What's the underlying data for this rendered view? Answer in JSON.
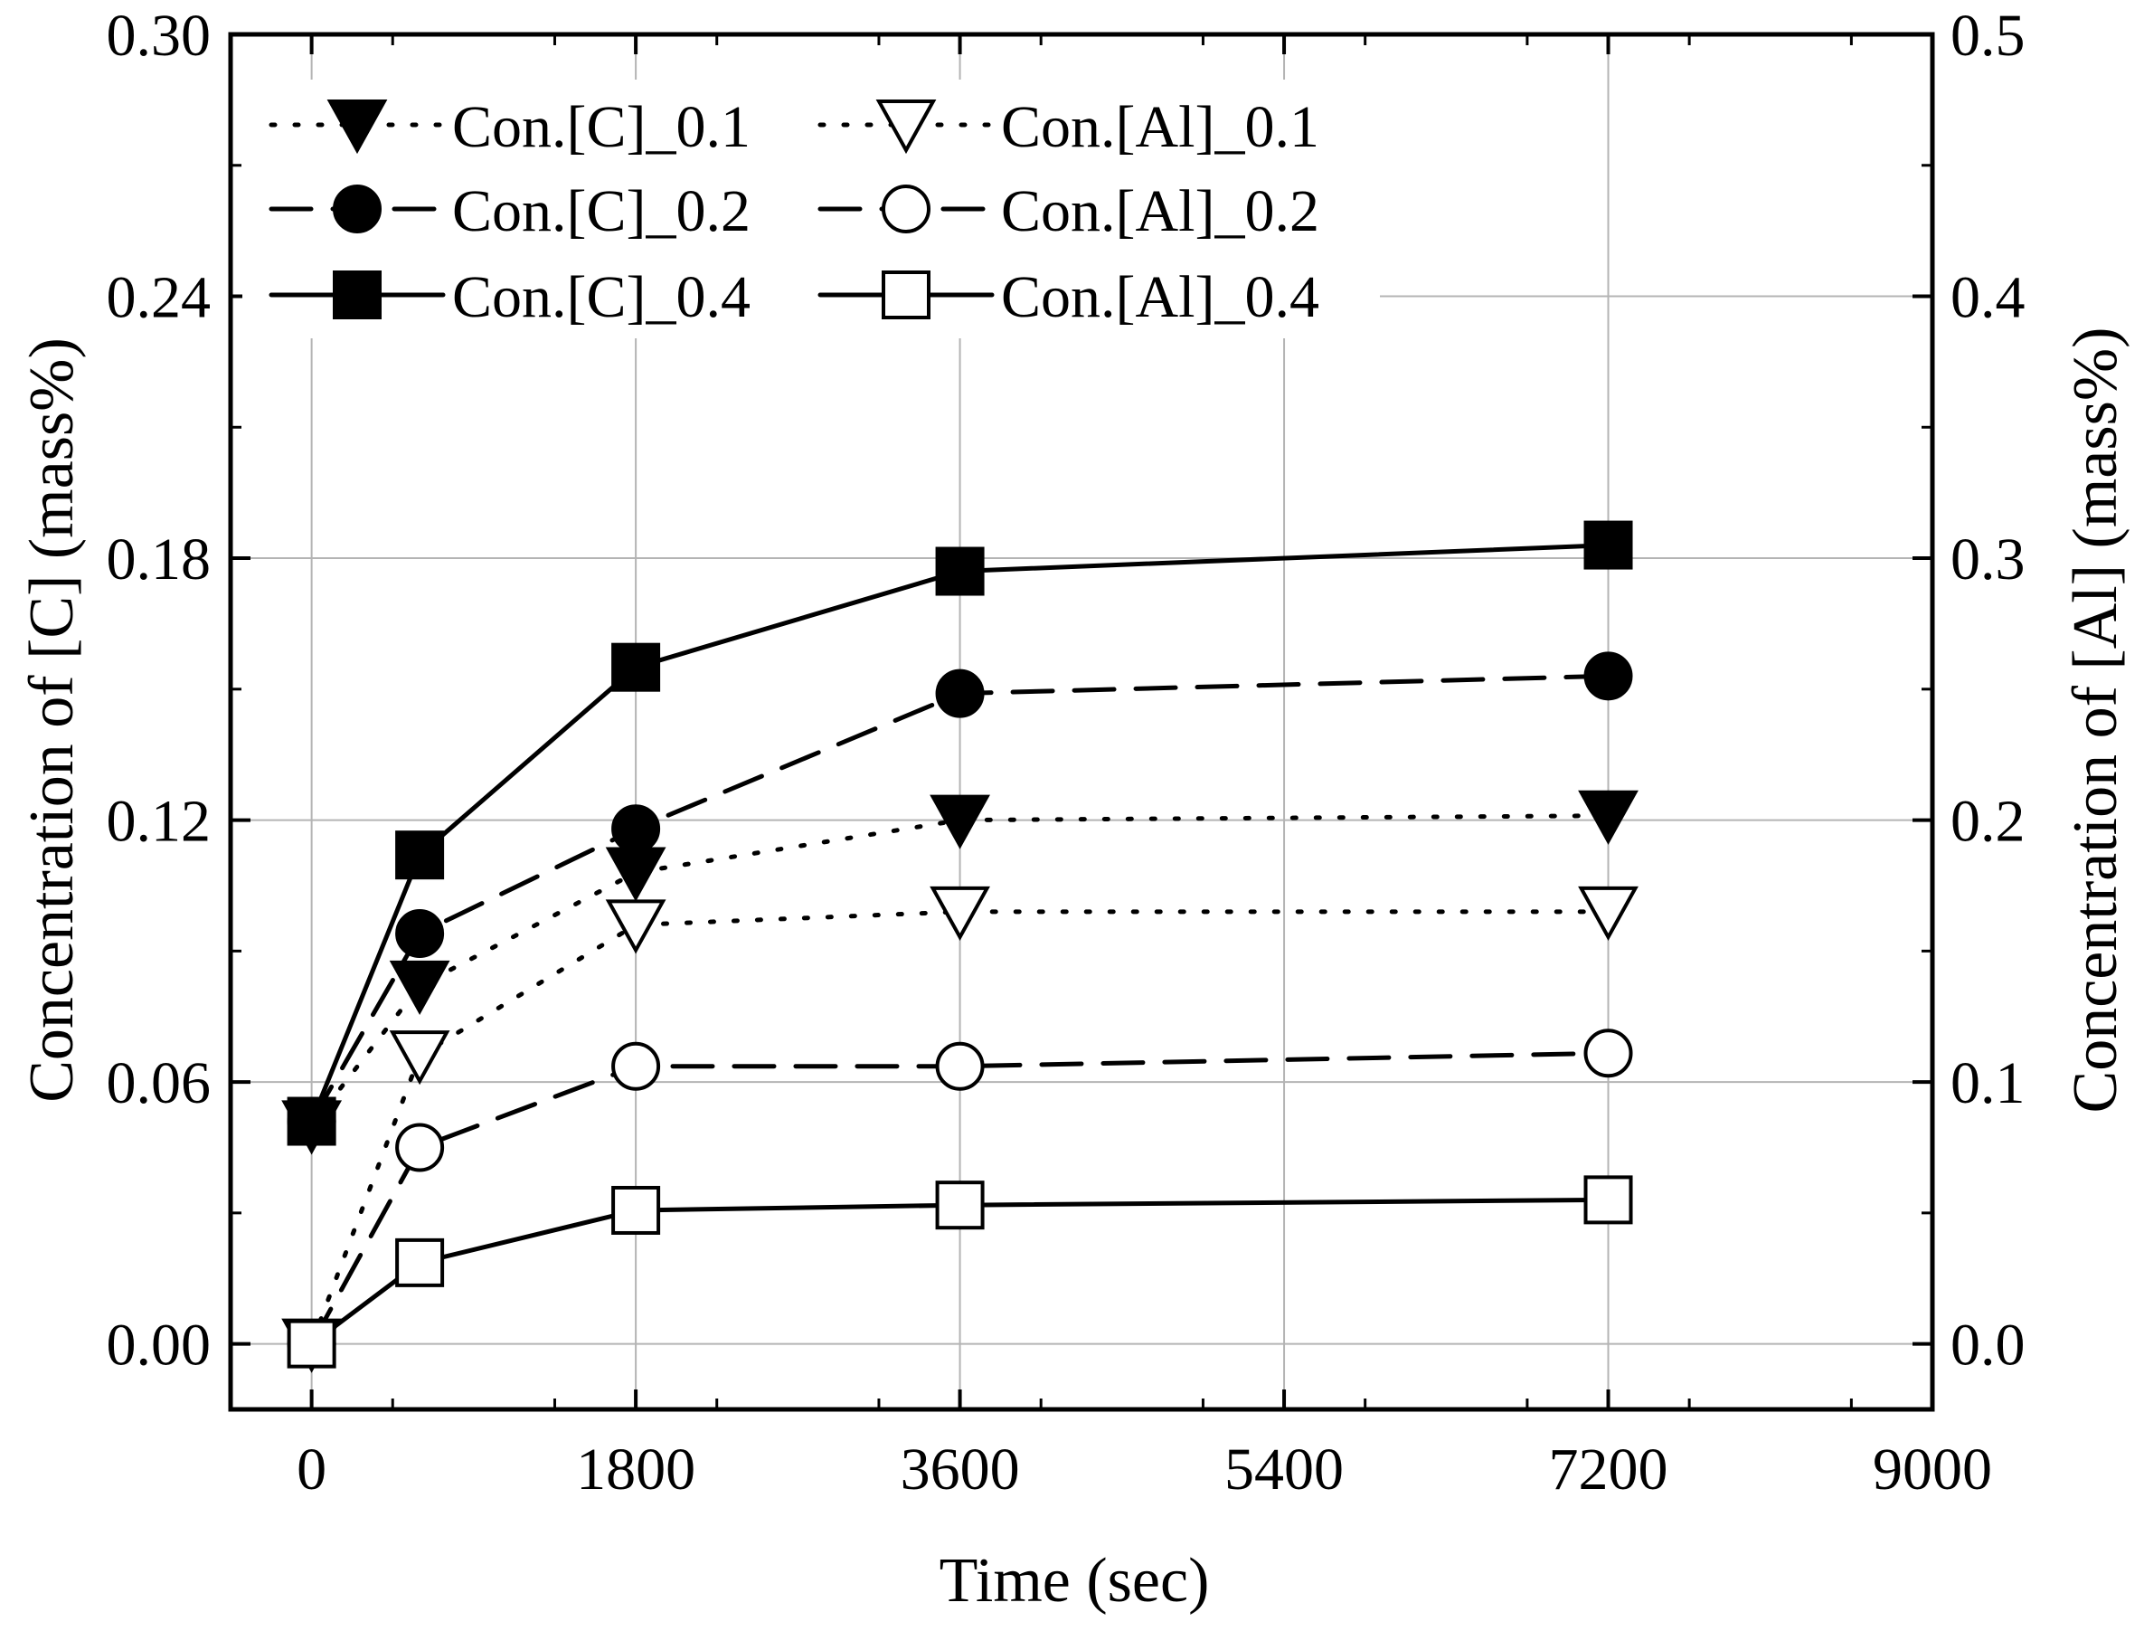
{
  "chart_data": {
    "type": "line",
    "x": [
      0,
      600,
      1800,
      3600,
      7200
    ],
    "xlabel": "Time (sec)",
    "ylabel_left": "Concentration of [C] (mass%)",
    "ylabel_right": "Concentration of [Al] (mass%)",
    "xlim": [
      -450,
      9000
    ],
    "ylim_left": [
      -0.015,
      0.3
    ],
    "ylim_right": [
      -0.025,
      0.5
    ],
    "x_ticks": [
      0,
      1800,
      3600,
      5400,
      7200,
      9000
    ],
    "x_tick_labels": [
      "0",
      "1800",
      "3600",
      "5400",
      "7200",
      "9000"
    ],
    "y_left_ticks": [
      0.0,
      0.06,
      0.12,
      0.18,
      0.24,
      0.3
    ],
    "y_left_tick_labels": [
      "0.00",
      "0.06",
      "0.12",
      "0.18",
      "0.24",
      "0.30"
    ],
    "y_right_ticks": [
      0.0,
      0.1,
      0.2,
      0.3,
      0.4,
      0.5
    ],
    "y_right_tick_labels": [
      "0.0",
      "0.1",
      "0.2",
      "0.3",
      "0.4",
      "0.5"
    ],
    "grid": true,
    "legend_position": "top-left",
    "series": [
      {
        "name": "Con.[C]_0.1",
        "axis": "left",
        "marker": "triangle-down",
        "filled": true,
        "line": "dotted",
        "values": [
          0.05,
          0.082,
          0.108,
          0.12,
          0.121
        ]
      },
      {
        "name": "Con.[Al]_0.1",
        "axis": "right",
        "marker": "triangle-down",
        "filled": false,
        "line": "dotted",
        "values": [
          0.0,
          0.11,
          0.16,
          0.165,
          0.165
        ]
      },
      {
        "name": "Con.[C]_0.2",
        "axis": "left",
        "marker": "circle",
        "filled": true,
        "line": "dashed",
        "values": [
          0.051,
          0.094,
          0.118,
          0.149,
          0.153
        ]
      },
      {
        "name": "Con.[Al]_0.2",
        "axis": "right",
        "marker": "circle",
        "filled": false,
        "line": "dashed",
        "values": [
          0.0,
          0.075,
          0.106,
          0.106,
          0.111
        ]
      },
      {
        "name": "Con.[C]_0.4",
        "axis": "left",
        "marker": "square",
        "filled": true,
        "line": "solid",
        "values": [
          0.051,
          0.112,
          0.155,
          0.177,
          0.183
        ]
      },
      {
        "name": "Con.[Al]_0.4",
        "axis": "right",
        "marker": "square",
        "filled": false,
        "line": "solid",
        "values": [
          0.0,
          0.031,
          0.051,
          0.053,
          0.055
        ]
      }
    ]
  }
}
